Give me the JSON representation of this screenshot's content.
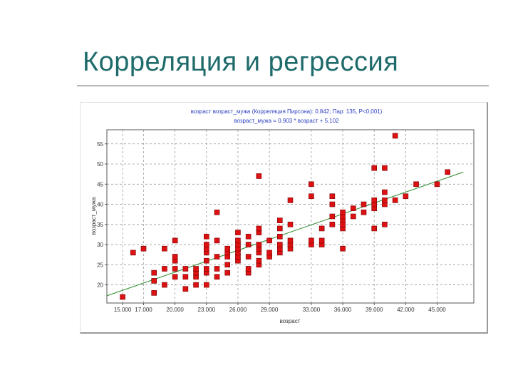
{
  "slide": {
    "title": "Корреляция и регрессия"
  },
  "chart_data": {
    "type": "scatter",
    "title_line1": "возраст     возраст_мужа (Корреляция Пирсона): 0.842; Пар: 135, P<0,001)",
    "title_line2": "возраст_мужа = 0.903 * возраст + 5.102",
    "xlabel": "возраст",
    "ylabel": "возраст_мужа",
    "xlim": [
      13.5,
      48.5
    ],
    "ylim": [
      15.5,
      58.5
    ],
    "x_ticks": [
      15,
      17,
      20,
      23,
      26,
      29,
      33,
      36,
      39,
      42,
      45
    ],
    "x_tick_labels": [
      "15.000",
      "17.000",
      "20.000",
      "23.000",
      "26.000",
      "29.000",
      "33.000",
      "36.000",
      "39.000",
      "42.000",
      "45.000"
    ],
    "y_ticks": [
      20,
      25,
      30,
      35,
      40,
      45,
      50,
      55
    ],
    "y_tick_labels": [
      "20",
      "25",
      "30",
      "35",
      "40",
      "45",
      "50",
      "55"
    ],
    "grid": true,
    "marker_color": "#dd1111",
    "line_color": "#2a8a2a",
    "regression": {
      "slope": 0.903,
      "intercept": 5.102
    },
    "points": [
      [
        15,
        17
      ],
      [
        16,
        28
      ],
      [
        17,
        29
      ],
      [
        18,
        18
      ],
      [
        18,
        21
      ],
      [
        18,
        23
      ],
      [
        19,
        20
      ],
      [
        19,
        24
      ],
      [
        19,
        29
      ],
      [
        20,
        22
      ],
      [
        20,
        24
      ],
      [
        20,
        26
      ],
      [
        20,
        27
      ],
      [
        20,
        31
      ],
      [
        21,
        19
      ],
      [
        21,
        22
      ],
      [
        21,
        24
      ],
      [
        22,
        20
      ],
      [
        22,
        22
      ],
      [
        22,
        23
      ],
      [
        22,
        24
      ],
      [
        23,
        20
      ],
      [
        23,
        23
      ],
      [
        23,
        24
      ],
      [
        23,
        26
      ],
      [
        23,
        28
      ],
      [
        23,
        29
      ],
      [
        23,
        30
      ],
      [
        23,
        32
      ],
      [
        24,
        22
      ],
      [
        24,
        24
      ],
      [
        24,
        27
      ],
      [
        24,
        31
      ],
      [
        24,
        38
      ],
      [
        25,
        23
      ],
      [
        25,
        25
      ],
      [
        25,
        27
      ],
      [
        25,
        28
      ],
      [
        25,
        29
      ],
      [
        26,
        26
      ],
      [
        26,
        27
      ],
      [
        26,
        28
      ],
      [
        26,
        29
      ],
      [
        26,
        30
      ],
      [
        26,
        31
      ],
      [
        26,
        33
      ],
      [
        27,
        23
      ],
      [
        27,
        24
      ],
      [
        27,
        27
      ],
      [
        27,
        30
      ],
      [
        27,
        32
      ],
      [
        28,
        25
      ],
      [
        28,
        26
      ],
      [
        28,
        28
      ],
      [
        28,
        29
      ],
      [
        28,
        30
      ],
      [
        28,
        33
      ],
      [
        28,
        34
      ],
      [
        28,
        47
      ],
      [
        29,
        27
      ],
      [
        29,
        28
      ],
      [
        29,
        31
      ],
      [
        30,
        28
      ],
      [
        30,
        29
      ],
      [
        30,
        30
      ],
      [
        30,
        32
      ],
      [
        30,
        34
      ],
      [
        30,
        36
      ],
      [
        31,
        29
      ],
      [
        31,
        30
      ],
      [
        31,
        31
      ],
      [
        31,
        35
      ],
      [
        31,
        41
      ],
      [
        33,
        30
      ],
      [
        33,
        31
      ],
      [
        33,
        42
      ],
      [
        33,
        45
      ],
      [
        34,
        30
      ],
      [
        34,
        31
      ],
      [
        34,
        34
      ],
      [
        35,
        35
      ],
      [
        35,
        37
      ],
      [
        35,
        40
      ],
      [
        35,
        42
      ],
      [
        36,
        29
      ],
      [
        36,
        34
      ],
      [
        36,
        35
      ],
      [
        36,
        36
      ],
      [
        36,
        37
      ],
      [
        36,
        38
      ],
      [
        37,
        37
      ],
      [
        37,
        39
      ],
      [
        38,
        38
      ],
      [
        38,
        40
      ],
      [
        39,
        34
      ],
      [
        39,
        39
      ],
      [
        39,
        40
      ],
      [
        39,
        41
      ],
      [
        39,
        49
      ],
      [
        40,
        35
      ],
      [
        40,
        40
      ],
      [
        40,
        41
      ],
      [
        40,
        43
      ],
      [
        40,
        49
      ],
      [
        41,
        41
      ],
      [
        41,
        57
      ],
      [
        42,
        42
      ],
      [
        43,
        45
      ],
      [
        45,
        45
      ],
      [
        46,
        48
      ]
    ]
  }
}
